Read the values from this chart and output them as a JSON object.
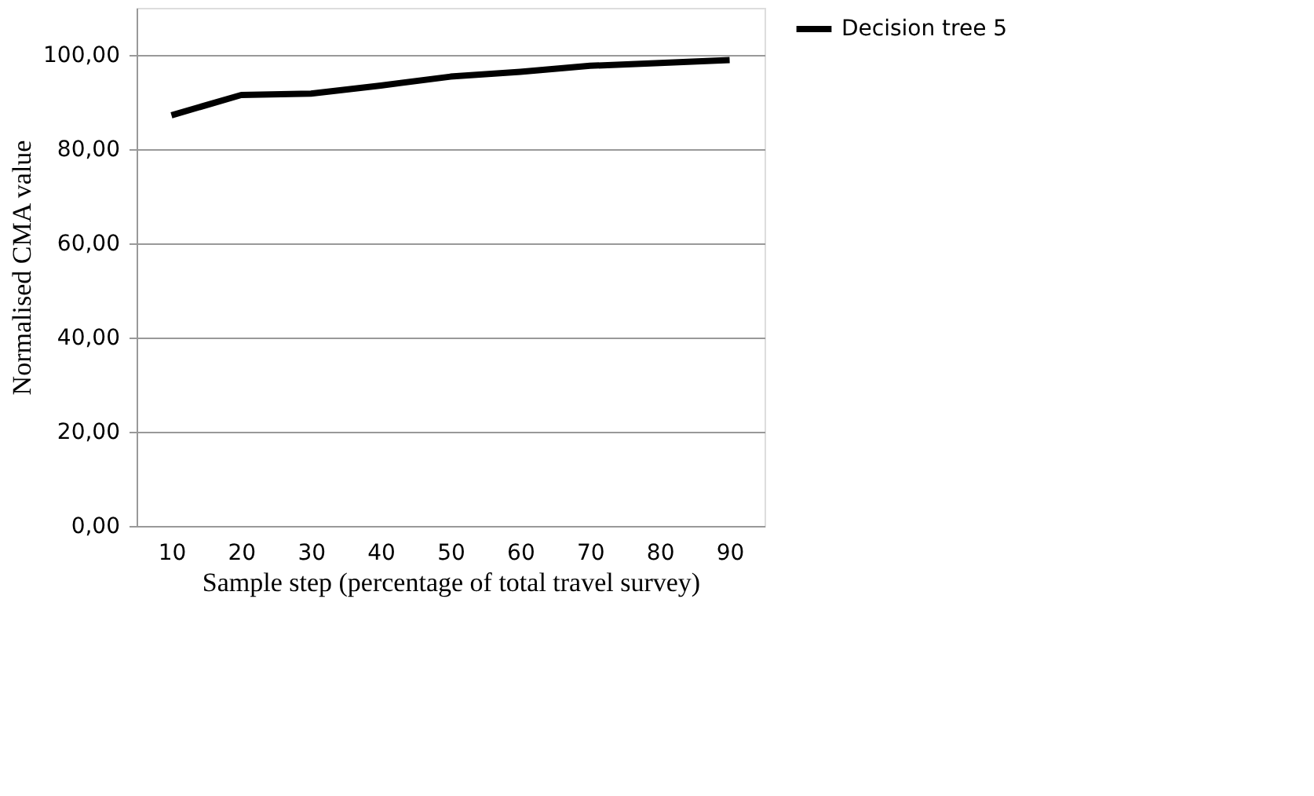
{
  "chart_data": {
    "type": "line",
    "xlabel": "Sample step (percentage of total travel survey)",
    "ylabel": "Normalised CMA value",
    "categories": [
      "10",
      "20",
      "30",
      "40",
      "50",
      "60",
      "70",
      "80",
      "90"
    ],
    "series": [
      {
        "name": "Decision tree 5",
        "color": "#000000",
        "values": [
          87.2,
          91.5,
          91.8,
          93.5,
          95.4,
          96.4,
          97.7,
          98.3,
          98.9
        ]
      }
    ],
    "ylim": [
      0,
      110
    ],
    "yticks": [
      {
        "value": 0,
        "label": "0,00"
      },
      {
        "value": 20,
        "label": "20,00"
      },
      {
        "value": 40,
        "label": "40,00"
      },
      {
        "value": 60,
        "label": "60,00"
      },
      {
        "value": 80,
        "label": "80,00"
      },
      {
        "value": 100,
        "label": "100,00"
      }
    ],
    "grid": "y",
    "legend": "right",
    "marker": "none",
    "line_style": "solid"
  }
}
